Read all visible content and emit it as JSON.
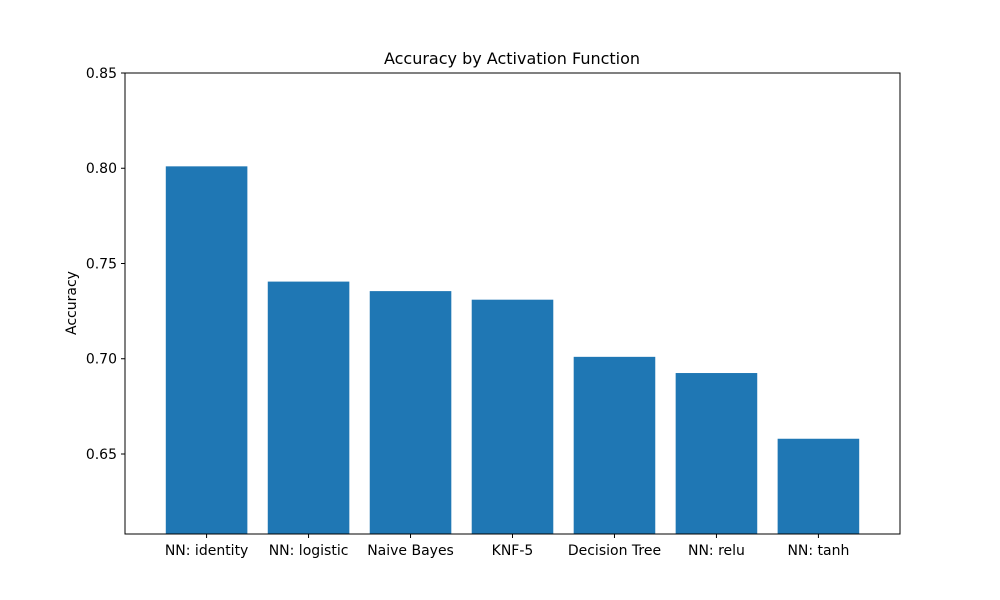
{
  "chart_data": {
    "type": "bar",
    "title": "Accuracy by Activation Function",
    "xlabel": "",
    "ylabel": "Accuracy",
    "categories": [
      "NN: identity",
      "NN: logistic",
      "Naive Bayes",
      "KNF-5",
      "Decision Tree",
      "NN: relu",
      "NN: tanh"
    ],
    "values": [
      0.801,
      0.7405,
      0.7355,
      0.731,
      0.701,
      0.6925,
      0.658
    ],
    "ylim": [
      0.608,
      0.85
    ],
    "yticks": [
      0.65,
      0.7,
      0.75,
      0.8,
      0.85
    ],
    "ytick_labels": [
      "0.65",
      "0.70",
      "0.75",
      "0.80",
      "0.85"
    ],
    "grid": false,
    "bar_color": "#1f77b4"
  }
}
